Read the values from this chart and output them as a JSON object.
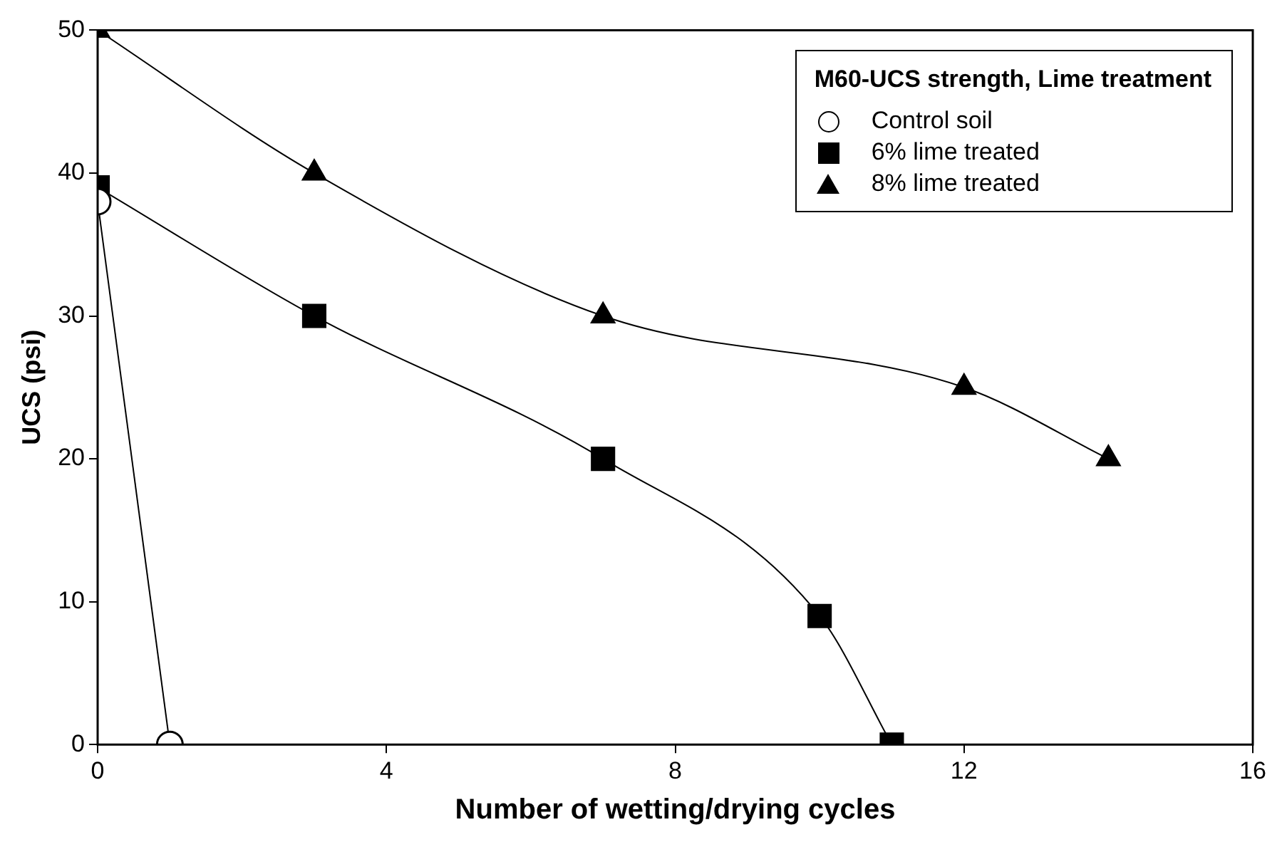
{
  "chart_data": {
    "type": "line",
    "xlabel": "Number of wetting/drying cycles",
    "ylabel": "UCS (psi)",
    "legend_title": "M60-UCS strength, Lime treatment",
    "legend": "top right",
    "xlim": [
      0,
      16
    ],
    "xticks": [
      0,
      4,
      8,
      12,
      16
    ],
    "ylim": [
      0,
      50
    ],
    "yticks": [
      0,
      10,
      20,
      30,
      40,
      50
    ],
    "grid": false,
    "series": [
      {
        "name": "Control soil",
        "color": "#000000",
        "marker": "circle",
        "x": [
          0,
          1
        ],
        "values": [
          38,
          0
        ]
      },
      {
        "name": "6% lime treated",
        "color": "#000000",
        "marker": "square",
        "x": [
          0,
          3,
          7,
          10,
          11
        ],
        "values": [
          39,
          30,
          20,
          9,
          0
        ]
      },
      {
        "name": "8% lime treated",
        "color": "#000000",
        "marker": "triangle",
        "x": [
          0,
          3,
          7,
          12,
          14
        ],
        "values": [
          50,
          40,
          30,
          25,
          20
        ]
      }
    ]
  }
}
